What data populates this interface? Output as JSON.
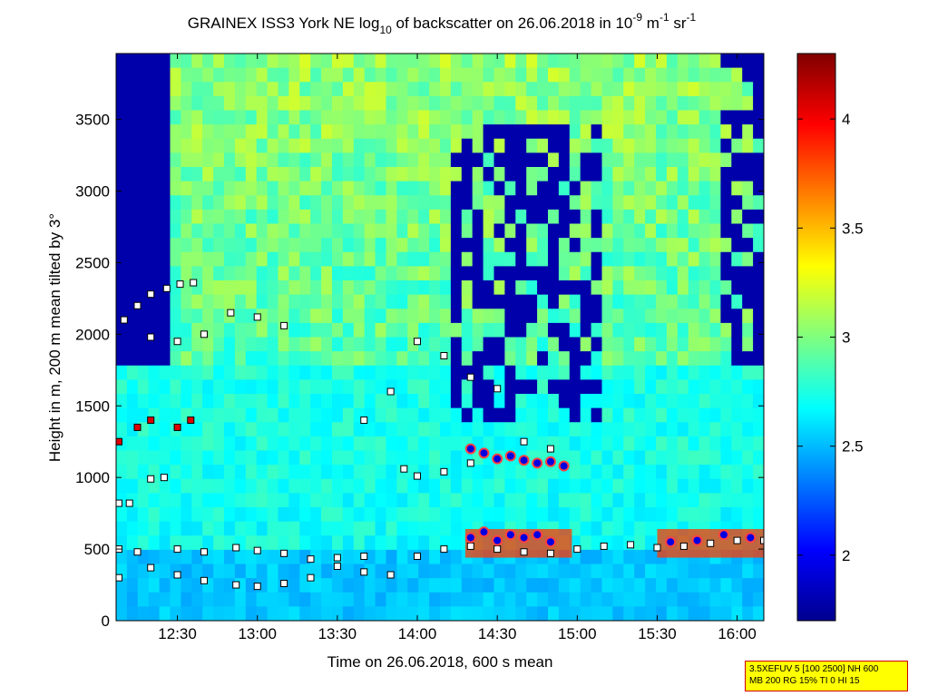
{
  "chart_data": {
    "type": "heatmap",
    "title": {
      "t1": "GRAINEX ISS3 York NE log",
      "sub1": "10",
      "t2": " of backscatter on 26.06.2018 in 10",
      "sup1": "-9",
      "t3": " m",
      "sup2": "-1",
      "t4": " sr",
      "sup3": "-1"
    },
    "xlabel": "Time on 26.06.2018, 600 s mean",
    "ylabel": "Height in m, 200 m mean tilted by 3°",
    "xlim": [
      "12:07",
      "16:10"
    ],
    "ylim": [
      0,
      3960
    ],
    "x_ticks": [
      "12:30",
      "13:00",
      "13:30",
      "14:00",
      "14:30",
      "15:00",
      "15:30",
      "16:00"
    ],
    "y_ticks": [
      0,
      500,
      1000,
      1500,
      2000,
      2500,
      3000,
      3500
    ],
    "colorbar": {
      "range": [
        1.7,
        4.3
      ],
      "ticks": [
        "2",
        "2.5",
        "3",
        "3.5",
        "4"
      ],
      "colormap": "jet"
    },
    "series": [
      {
        "marker": "black-square",
        "x": [
          "12:08",
          "12:20",
          "12:30",
          "12:40",
          "12:52",
          "13:00",
          "13:10",
          "13:20",
          "13:30",
          "13:40",
          "13:50",
          "14:00",
          "14:10",
          "14:20",
          "14:30",
          "14:40",
          "14:50",
          "15:00",
          "15:10",
          "15:20",
          "15:30",
          "15:40",
          "15:50",
          "16:00",
          "16:10"
        ],
        "y": [
          300,
          370,
          320,
          280,
          250,
          240,
          260,
          300,
          380,
          340,
          320,
          450,
          500,
          520,
          500,
          480,
          470,
          500,
          520,
          530,
          510,
          520,
          540,
          560,
          560
        ]
      },
      {
        "marker": "black-square",
        "x": [
          "12:08",
          "12:15",
          "12:30",
          "12:40",
          "12:52",
          "13:00",
          "13:10",
          "13:20",
          "13:30",
          "13:40"
        ],
        "y": [
          500,
          480,
          500,
          480,
          510,
          490,
          470,
          430,
          440,
          450
        ]
      },
      {
        "marker": "black-square",
        "x": [
          "12:08",
          "12:12",
          "12:20",
          "12:25"
        ],
        "y": [
          820,
          820,
          990,
          1000
        ]
      },
      {
        "marker": "red-square",
        "x": [
          "12:08",
          "12:15",
          "12:20",
          "12:30",
          "12:35"
        ],
        "y": [
          1250,
          1350,
          1400,
          1350,
          1400
        ]
      },
      {
        "marker": "black-square",
        "x": [
          "12:10",
          "12:15",
          "12:20",
          "12:26",
          "12:31",
          "12:36"
        ],
        "y": [
          2100,
          2200,
          2280,
          2320,
          2350,
          2360
        ]
      },
      {
        "marker": "black-square",
        "x": [
          "12:20",
          "12:30",
          "12:40",
          "12:50",
          "13:00",
          "13:10"
        ],
        "y": [
          1980,
          1950,
          2000,
          2150,
          2120,
          2060
        ]
      },
      {
        "marker": "black-square",
        "x": [
          "13:40",
          "13:50",
          "14:00",
          "14:10",
          "14:20",
          "14:30",
          "14:40",
          "14:50"
        ],
        "y": [
          1400,
          1600,
          1950,
          1850,
          1700,
          1620,
          1250,
          1200
        ]
      },
      {
        "marker": "black-square",
        "x": [
          "13:55",
          "14:00",
          "14:10",
          "14:20"
        ],
        "y": [
          1060,
          1010,
          1040,
          1100
        ]
      },
      {
        "marker": "blue-dot-red-outline",
        "x": [
          "14:20",
          "14:25",
          "14:30",
          "14:35",
          "14:40",
          "14:45",
          "14:50",
          "14:55"
        ],
        "y": [
          1200,
          1170,
          1130,
          1150,
          1120,
          1100,
          1110,
          1080
        ]
      },
      {
        "marker": "blue-dot-red-outline",
        "x": [
          "14:20",
          "14:25",
          "14:30",
          "14:35",
          "14:40",
          "14:45",
          "14:50",
          "15:35",
          "15:45",
          "15:55",
          "16:05"
        ],
        "y": [
          580,
          620,
          560,
          600,
          580,
          600,
          550,
          550,
          560,
          600,
          580
        ]
      }
    ]
  },
  "info_box": {
    "line1": "3.5XEFUV 5 [100 2500] NH 600",
    "line2": "MB 200 RG 15% TI 0 HI 15"
  }
}
